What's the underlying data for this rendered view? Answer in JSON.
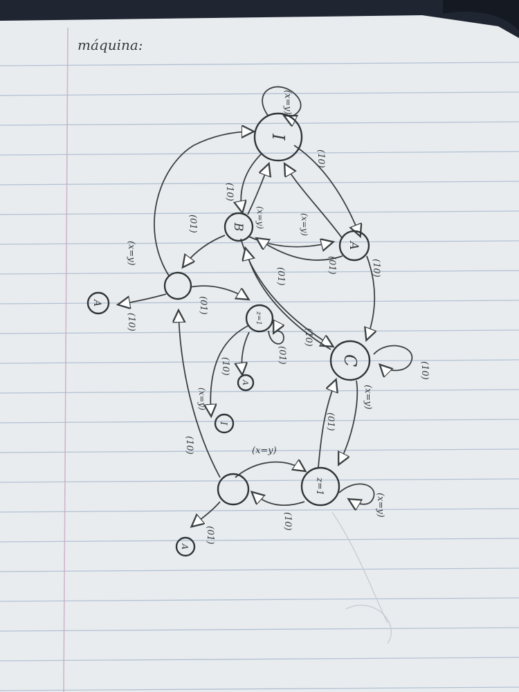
{
  "title": "máquina:",
  "states": {
    "I": "I",
    "B": "B",
    "A": "A",
    "C": "C",
    "left_mid": "",
    "z_small": "z=1",
    "z_big": "z=1",
    "bottom_left": ""
  },
  "outputs": {
    "accept_top": "A",
    "accept_small": "A",
    "reject": "I",
    "accept_bottom": "A"
  },
  "edge_labels": {
    "self_I": "(x=y)",
    "I_A": "(10)",
    "I_B": "(10)",
    "B_I": "(x=y)",
    "A_I": "(x=y)",
    "B_left": "(01)",
    "left_up": "(x=y)",
    "left_accept": "(10)",
    "left_z": "(01)",
    "A_B": "(01)",
    "B_C": "(01)",
    "A_C": "(10)",
    "C_B": "(10)",
    "z_loop": "(01)",
    "z_accept": "(10)",
    "z_reject": "(x=y)",
    "self_C": "(10)",
    "C_zbig": "(x=y)",
    "zbig_C": "(01)",
    "bl_left": "(10)",
    "bl_zbig": "(x=y)",
    "zbig_bl": "(10)",
    "self_zbig": "(x=y)",
    "bl_accept": "(01)"
  }
}
